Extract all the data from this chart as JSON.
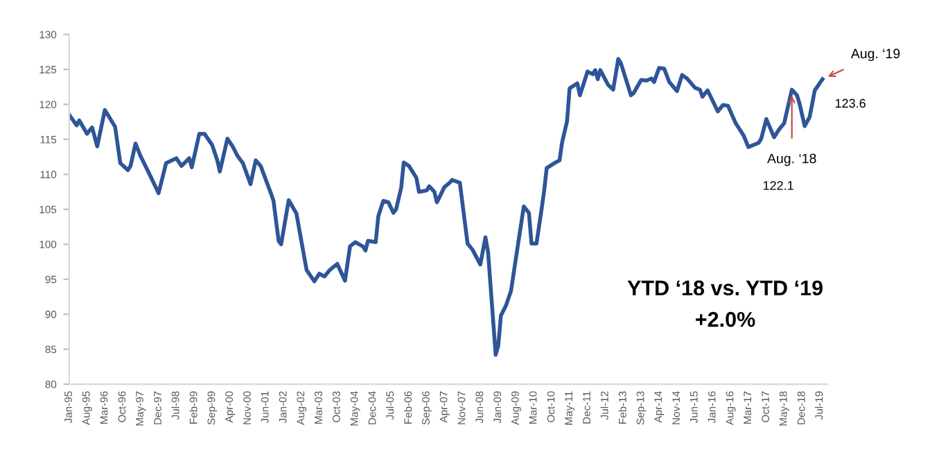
{
  "chart_data": {
    "type": "line",
    "x": [
      "1995-01",
      "1995-04",
      "1995-05",
      "1995-08",
      "1995-10",
      "1995-12",
      "1996-03",
      "1996-07",
      "1996-09",
      "1996-12",
      "1997-01",
      "1997-03",
      "1997-05",
      "1997-09",
      "1997-12",
      "1998-03",
      "1998-07",
      "1998-09",
      "1998-12",
      "1999-01",
      "1999-04",
      "1999-06",
      "1999-09",
      "1999-11",
      "1999-12",
      "2000-03",
      "2000-05",
      "2000-07",
      "2000-09",
      "2000-12",
      "2001-02",
      "2001-04",
      "2001-08",
      "2001-09",
      "2001-11",
      "2001-12",
      "2002-03",
      "2002-06",
      "2002-10",
      "2003-01",
      "2003-03",
      "2003-05",
      "2003-07",
      "2003-10",
      "2004-01",
      "2004-03",
      "2004-05",
      "2004-08",
      "2004-09",
      "2004-10",
      "2005-01",
      "2005-02",
      "2005-04",
      "2005-06",
      "2005-08",
      "2005-09",
      "2005-11",
      "2005-12",
      "2006-02",
      "2006-05",
      "2006-06",
      "2006-09",
      "2006-10",
      "2006-12",
      "2007-01",
      "2007-04",
      "2007-06",
      "2007-07",
      "2007-10",
      "2008-01",
      "2008-03",
      "2008-06",
      "2008-08",
      "2008-09",
      "2008-12",
      "2009-01",
      "2009-02",
      "2009-04",
      "2009-06",
      "2009-09",
      "2009-11",
      "2010-01",
      "2010-02",
      "2010-04",
      "2010-06",
      "2010-07",
      "2010-08",
      "2010-11",
      "2011-01",
      "2011-02",
      "2011-04",
      "2011-05",
      "2011-08",
      "2011-09",
      "2011-12",
      "2012-02",
      "2012-03",
      "2012-04",
      "2012-05",
      "2012-08",
      "2012-10",
      "2012-12",
      "2013-01",
      "2013-05",
      "2013-06",
      "2013-09",
      "2013-11",
      "2014-01",
      "2014-02",
      "2014-04",
      "2014-06",
      "2014-08",
      "2014-11",
      "2015-01",
      "2015-03",
      "2015-06",
      "2015-08",
      "2015-09",
      "2015-11",
      "2016-03",
      "2016-05",
      "2016-07",
      "2016-10",
      "2017-01",
      "2017-03",
      "2017-07",
      "2017-08",
      "2017-10",
      "2018-01",
      "2018-03",
      "2018-05",
      "2018-08",
      "2018-10",
      "2018-11",
      "2019-01",
      "2019-03",
      "2019-05",
      "2019-08"
    ],
    "series": [
      {
        "color": "#2e5597",
        "values": [
          118.5,
          117.0,
          117.7,
          115.8,
          116.7,
          114.0,
          119.2,
          116.8,
          111.6,
          110.6,
          111.2,
          114.4,
          112.6,
          109.6,
          107.3,
          111.6,
          112.3,
          111.2,
          112.3,
          111.0,
          115.8,
          115.8,
          114.2,
          112.0,
          110.4,
          115.1,
          114.0,
          112.6,
          111.6,
          108.6,
          112.0,
          111.2,
          107.3,
          106.2,
          100.5,
          100.0,
          106.3,
          104.4,
          96.3,
          94.7,
          95.8,
          95.4,
          96.3,
          97.2,
          94.8,
          99.7,
          100.3,
          99.7,
          99.1,
          100.5,
          100.3,
          104.0,
          106.2,
          106.0,
          104.5,
          105.0,
          108.1,
          111.7,
          111.2,
          109.5,
          107.5,
          107.7,
          108.3,
          107.5,
          106.0,
          108.2,
          108.8,
          109.2,
          108.8,
          100.1,
          99.2,
          97.1,
          101.0,
          98.9,
          84.2,
          85.5,
          89.8,
          91.2,
          93.3,
          100.6,
          105.4,
          104.5,
          100.1,
          100.1,
          105.0,
          107.6,
          110.9,
          111.6,
          112.0,
          114.6,
          117.6,
          122.3,
          123.0,
          121.3,
          124.7,
          124.3,
          124.9,
          123.6,
          124.9,
          122.8,
          122.1,
          126.5,
          125.9,
          121.3,
          121.6,
          123.5,
          123.4,
          123.7,
          123.2,
          125.2,
          125.1,
          123.2,
          121.9,
          124.2,
          123.7,
          122.4,
          122.1,
          121.1,
          122.0,
          119.0,
          119.9,
          119.8,
          117.3,
          115.6,
          113.9,
          114.5,
          115.1,
          117.9,
          115.3,
          116.4,
          117.3,
          122.1,
          121.3,
          120.1,
          116.9,
          118.2,
          122.0,
          123.6
        ]
      }
    ],
    "xlim": [
      "1995-01",
      "2019-10"
    ],
    "xticks": [
      {
        "value": "1995-01",
        "label": "Jan-95"
      },
      {
        "value": "1995-08",
        "label": "Aug-95"
      },
      {
        "value": "1996-03",
        "label": "Mar-96"
      },
      {
        "value": "1996-10",
        "label": "Oct-96"
      },
      {
        "value": "1997-05",
        "label": "May-97"
      },
      {
        "value": "1997-12",
        "label": "Dec-97"
      },
      {
        "value": "1998-07",
        "label": "Jul-98"
      },
      {
        "value": "1999-02",
        "label": "Feb-99"
      },
      {
        "value": "1999-09",
        "label": "Sep-99"
      },
      {
        "value": "2000-04",
        "label": "Apr-00"
      },
      {
        "value": "2000-11",
        "label": "Nov-00"
      },
      {
        "value": "2001-06",
        "label": "Jun-01"
      },
      {
        "value": "2002-01",
        "label": "Jan-02"
      },
      {
        "value": "2002-08",
        "label": "Aug-02"
      },
      {
        "value": "2003-03",
        "label": "Mar-03"
      },
      {
        "value": "2003-10",
        "label": "Oct-03"
      },
      {
        "value": "2004-05",
        "label": "May-04"
      },
      {
        "value": "2004-12",
        "label": "Dec-04"
      },
      {
        "value": "2005-07",
        "label": "Jul-05"
      },
      {
        "value": "2006-02",
        "label": "Feb-06"
      },
      {
        "value": "2006-09",
        "label": "Sep-06"
      },
      {
        "value": "2007-04",
        "label": "Apr-07"
      },
      {
        "value": "2007-11",
        "label": "Nov-07"
      },
      {
        "value": "2008-06",
        "label": "Jun-08"
      },
      {
        "value": "2009-01",
        "label": "Jan-09"
      },
      {
        "value": "2009-08",
        "label": "Aug-09"
      },
      {
        "value": "2010-03",
        "label": "Mar-10"
      },
      {
        "value": "2010-10",
        "label": "Oct-10"
      },
      {
        "value": "2011-05",
        "label": "May-11"
      },
      {
        "value": "2011-12",
        "label": "Dec-11"
      },
      {
        "value": "2012-07",
        "label": "Jul-12"
      },
      {
        "value": "2013-02",
        "label": "Feb-13"
      },
      {
        "value": "2013-09",
        "label": "Sep-13"
      },
      {
        "value": "2014-04",
        "label": "Apr-14"
      },
      {
        "value": "2014-11",
        "label": "Nov-14"
      },
      {
        "value": "2015-06",
        "label": "Jun-15"
      },
      {
        "value": "2016-01",
        "label": "Jan-16"
      },
      {
        "value": "2016-08",
        "label": "Aug-16"
      },
      {
        "value": "2017-03",
        "label": "Mar-17"
      },
      {
        "value": "2017-10",
        "label": "Oct-17"
      },
      {
        "value": "2018-05",
        "label": "May-18"
      },
      {
        "value": "2018-12",
        "label": "Dec-18"
      },
      {
        "value": "2019-07",
        "label": "Jul-19"
      }
    ],
    "ylim": [
      80,
      130
    ],
    "yticks": [
      80,
      85,
      90,
      95,
      100,
      105,
      110,
      115,
      120,
      125,
      130
    ],
    "grid": false,
    "legend": false,
    "marker": "none",
    "line_style": "solid",
    "annotations": [
      {
        "text": "Aug. ‘18",
        "x": "2018-08",
        "y": 122.1
      },
      "122.1",
      {
        "text": "Aug. ‘19",
        "x": "2019-08",
        "y": 123.6
      },
      "123.6",
      "YTD ‘18 vs. YTD ‘19",
      "+2.0%"
    ]
  }
}
